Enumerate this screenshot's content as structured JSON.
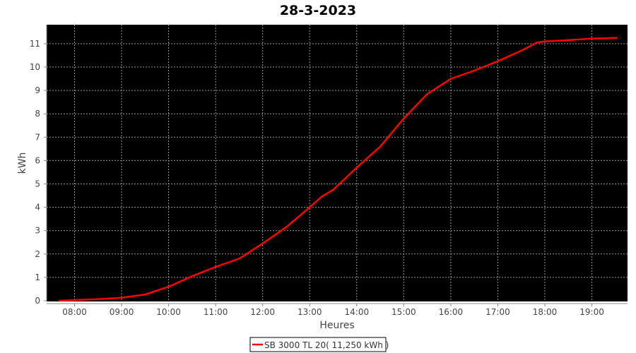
{
  "chart_data": {
    "type": "line",
    "title": "28-3-2023",
    "xlabel": "Heures",
    "ylabel": "kWh",
    "x_ticks": [
      "08:00",
      "09:00",
      "10:00",
      "11:00",
      "12:00",
      "13:00",
      "14:00",
      "15:00",
      "16:00",
      "17:00",
      "18:00",
      "19:00"
    ],
    "y_ticks": [
      "0",
      "1",
      "2",
      "3",
      "4",
      "5",
      "6",
      "7",
      "8",
      "9",
      "10",
      "11"
    ],
    "ylim": [
      0,
      11.9
    ],
    "xlim": [
      "07:32",
      "20:00"
    ],
    "grid": true,
    "legend_position": "bottom",
    "background": "#000000",
    "series": [
      {
        "name": "SB 3000 TL 20( 11,250 kWh )",
        "color": "#ff0000",
        "x": [
          "07:40",
          "08:00",
          "08:30",
          "09:00",
          "09:30",
          "10:00",
          "10:30",
          "11:00",
          "11:30",
          "12:00",
          "12:30",
          "13:00",
          "13:15",
          "13:30",
          "14:00",
          "14:30",
          "15:00",
          "15:30",
          "16:00",
          "16:30",
          "17:00",
          "17:30",
          "17:50",
          "18:00",
          "18:30",
          "19:00",
          "19:32"
        ],
        "y": [
          0,
          0.03,
          0.07,
          0.13,
          0.27,
          0.6,
          1.05,
          1.45,
          1.8,
          2.45,
          3.15,
          4.0,
          4.45,
          4.75,
          5.7,
          6.6,
          7.8,
          8.85,
          9.5,
          9.85,
          10.25,
          10.7,
          11.05,
          11.1,
          11.15,
          11.22,
          11.25
        ]
      }
    ]
  }
}
